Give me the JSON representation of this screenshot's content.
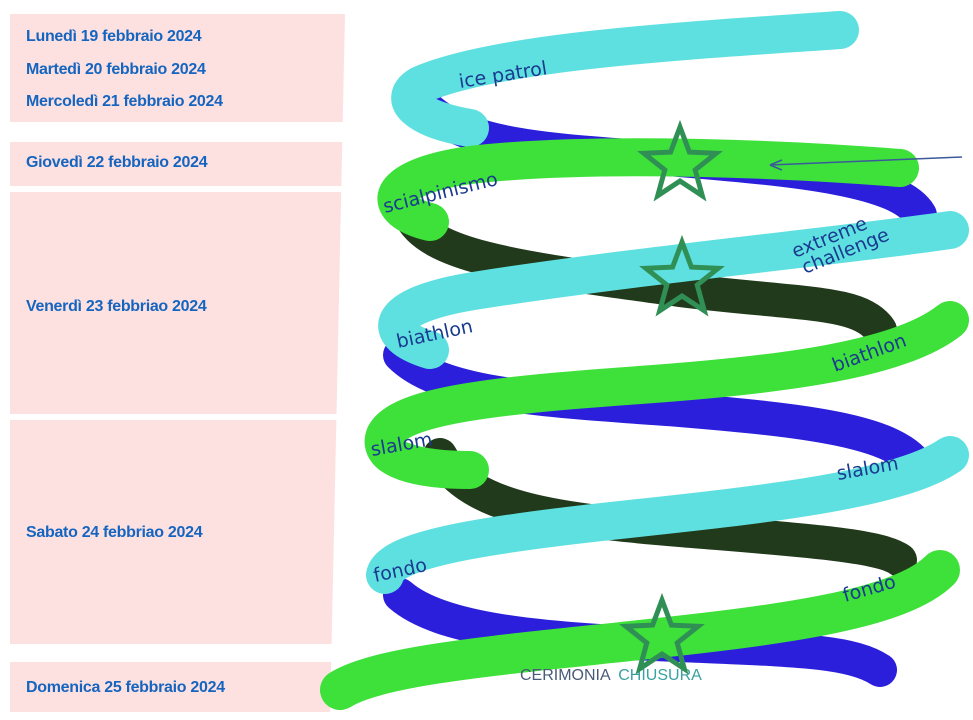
{
  "colors": {
    "band": "#fde1e1",
    "day_text": "#1565c0",
    "ribbon_cyan": "#5fe0e0",
    "ribbon_green": "#3ee03a",
    "ribbon_blue": "#2b1fdc",
    "ribbon_dark": "#223a1c",
    "star": "#2f8f55",
    "label_text": "#1a3a8f"
  },
  "schedule": [
    {
      "label": "Lunedì 19 febbraio 2024"
    },
    {
      "label": "Martedì 20 febbraio 2024"
    },
    {
      "label": "Mercoledì 21 febbraio 2024"
    },
    {
      "label": "Giovedì 22 febbraio 2024"
    },
    {
      "label": "Venerdì 23 febbriao 2024"
    },
    {
      "label": "Sabato 24 febbriao 2024"
    },
    {
      "label": "Domenica 25 febbraio 2024"
    }
  ],
  "helix": {
    "labels": {
      "ice_patrol": "ice patrol",
      "scialpinismo": "scialpinismo",
      "extreme": "extreme",
      "challenge": "challenge",
      "biathlon_left": "biathlon",
      "biathlon_right": "biathlon",
      "slalom_left": "slalom",
      "slalom_right": "slalom",
      "fondo_left": "fondo",
      "fondo_right": "fondo"
    },
    "closing": {
      "word1": "CERIMONIA",
      "word2": "CHIUSURA"
    },
    "icons": [
      "star-icon",
      "star-icon",
      "star-icon"
    ]
  }
}
